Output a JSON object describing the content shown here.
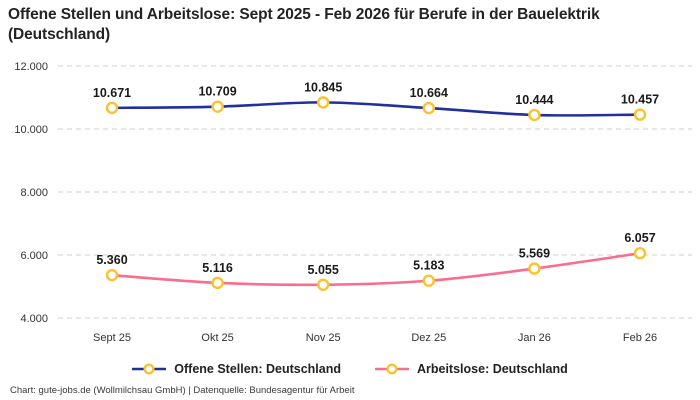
{
  "header": {
    "title": "Offene Stellen und Arbeitslose: Sept 2025 - Feb 2026 für Berufe in der Bauelektrik (Deutschland)"
  },
  "footer": {
    "credit": "Chart: gute-jobs.de (Wollmilchsau GmbH) | Datenquelle: Bundesagentur für Arbeit"
  },
  "colors": {
    "offene": "#22309c",
    "arbeitslose": "#f96e8d",
    "marker_ring": "#fcc22d",
    "marker_fill": "#ffffff",
    "grid": "#cccccc",
    "title_text": "#232323",
    "data_label_text": "#1a1a1a",
    "axis_text": "#333333",
    "footer_text": "#3a3a3a"
  },
  "chart_data": {
    "type": "line",
    "title": "Offene Stellen und Arbeitslose: Sept 2025 - Feb 2026 für Berufe in der Bauelektrik (Deutschland)",
    "x": [
      "Sept 25",
      "Okt 25",
      "Nov 25",
      "Dez 25",
      "Jan 26",
      "Feb 26"
    ],
    "series": [
      {
        "name": "Offene Stellen: Deutschland",
        "color_key": "offene",
        "values": [
          10671,
          10709,
          10845,
          10664,
          10444,
          10457
        ],
        "labels": [
          "10.671",
          "10.709",
          "10.845",
          "10.664",
          "10.444",
          "10.457"
        ]
      },
      {
        "name": "Arbeitslose: Deutschland",
        "color_key": "arbeitslose",
        "values": [
          5360,
          5116,
          5055,
          5183,
          5569,
          6057
        ],
        "labels": [
          "5.360",
          "5.116",
          "5.055",
          "5.183",
          "5.569",
          "6.057"
        ]
      }
    ],
    "yticks": [
      {
        "label": "12.000",
        "value": 12000
      },
      {
        "label": "10.000",
        "value": 10000
      },
      {
        "label": "8.000",
        "value": 8000
      },
      {
        "label": "6.000",
        "value": 6000
      },
      {
        "label": "4.000",
        "value": 4000
      }
    ],
    "ylim": [
      4000,
      12000
    ],
    "grid": "horizontal-dashed",
    "legend_position": "bottom",
    "marker_style": "yellow-ring-circle"
  }
}
